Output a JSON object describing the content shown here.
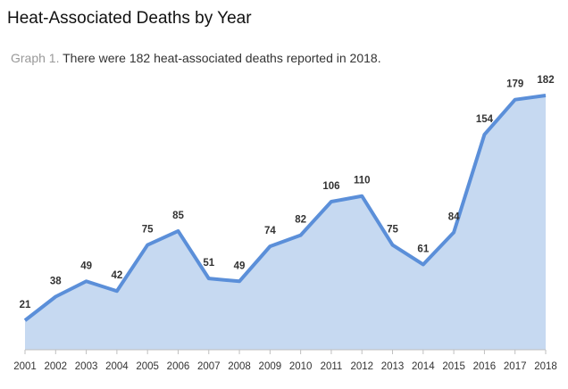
{
  "chart_data": {
    "type": "area",
    "title": "Heat-Associated Deaths by Year",
    "subtitle_prefix": "Graph 1.",
    "subtitle": "There were 182 heat-associated deaths reported in 2018.",
    "categories": [
      "2001",
      "2002",
      "2003",
      "2004",
      "2005",
      "2006",
      "2007",
      "2008",
      "2009",
      "2010",
      "2011",
      "2012",
      "2013",
      "2014",
      "2015",
      "2016",
      "2017",
      "2018"
    ],
    "values": [
      21,
      38,
      49,
      42,
      75,
      85,
      51,
      49,
      74,
      82,
      106,
      110,
      75,
      61,
      84,
      154,
      179,
      182
    ],
    "ylim": [
      0,
      182
    ],
    "grid": false,
    "line_color": "#5b8fd9",
    "fill_color": "#c6d9f1"
  }
}
